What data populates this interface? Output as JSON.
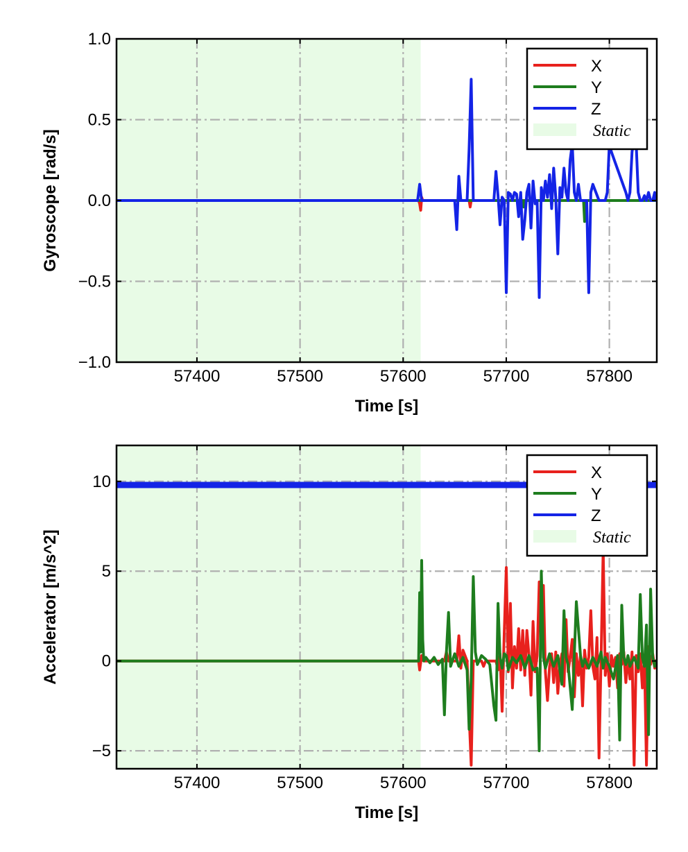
{
  "chart_data": [
    {
      "type": "line",
      "xlabel": "Time [s]",
      "ylabel": "Gyroscope [rad/s]",
      "xlim": [
        57322,
        57846
      ],
      "ylim": [
        -1.0,
        1.0
      ],
      "xticks": [
        57400,
        57500,
        57600,
        57700,
        57800
      ],
      "xtick_labels": [
        "57400",
        "57500",
        "57600",
        "57700",
        "57800"
      ],
      "yticks": [
        -1.0,
        -0.5,
        0.0,
        0.5,
        1.0
      ],
      "ytick_labels": [
        "−1.0",
        "−0.5",
        "0.0",
        "0.5",
        "1.0"
      ],
      "grid": true,
      "legend_position": "top-right",
      "static_region": {
        "name": "Static",
        "x": [
          57322,
          57617
        ],
        "color": "#e8fbe6"
      },
      "series": [
        {
          "name": "X",
          "color": "#e8211d",
          "x": [
            57322,
            57615,
            57616,
            57617,
            57618,
            57619,
            57664,
            57665,
            57666,
            57845
          ],
          "y": [
            0,
            0,
            -0.02,
            -0.06,
            0.02,
            0,
            0,
            -0.04,
            0,
            0
          ]
        },
        {
          "name": "Y",
          "color": "#1e7d1e",
          "x": [
            57322,
            57716,
            57717,
            57718,
            57775,
            57776,
            57777,
            57778,
            57845
          ],
          "y": [
            0,
            0,
            -0.04,
            0,
            0,
            -0.13,
            0,
            0,
            0
          ]
        },
        {
          "name": "Z",
          "color": "#1424e6",
          "x": [
            57322,
            57614,
            57616,
            57618,
            57650,
            57652,
            57654,
            57656,
            57662,
            57664,
            57666,
            57668,
            57670,
            57688,
            57690,
            57692,
            57694,
            57696,
            57698,
            57700,
            57702,
            57704,
            57706,
            57708,
            57710,
            57712,
            57714,
            57716,
            57718,
            57720,
            57722,
            57724,
            57726,
            57728,
            57730,
            57732,
            57734,
            57736,
            57738,
            57740,
            57742,
            57744,
            57746,
            57748,
            57750,
            57752,
            57754,
            57756,
            57758,
            57760,
            57762,
            57764,
            57766,
            57768,
            57770,
            57772,
            57774,
            57776,
            57778,
            57780,
            57782,
            57784,
            57790,
            57792,
            57794,
            57796,
            57798,
            57800,
            57802,
            57816,
            57818,
            57820,
            57822,
            57824,
            57826,
            57828,
            57830,
            57832,
            57834,
            57836,
            57838,
            57840,
            57842,
            57844,
            57845
          ],
          "y": [
            0,
            0,
            0.1,
            0,
            0,
            -0.18,
            0.15,
            0,
            0,
            0.32,
            0.75,
            0,
            0,
            0,
            0.18,
            0.03,
            -0.15,
            0.02,
            0,
            -0.57,
            0.05,
            0.04,
            0,
            0.05,
            0.04,
            -0.1,
            0.05,
            -0.24,
            -0.12,
            0.05,
            0.1,
            -0.17,
            0.12,
            -0.02,
            0,
            -0.6,
            0.08,
            0,
            0.12,
            0.02,
            0.16,
            -0.05,
            0.2,
            0.02,
            -0.33,
            0.08,
            0.02,
            0.2,
            0.05,
            0,
            0.25,
            0.35,
            0.05,
            0,
            0.1,
            0,
            0,
            0,
            0,
            -0.57,
            0.05,
            0.1,
            0,
            0,
            0,
            0,
            0.05,
            0.35,
            0.3,
            0.05,
            0,
            0.05,
            0.3,
            0.4,
            0.35,
            0.05,
            0,
            0,
            0.03,
            0,
            0.05,
            0,
            0,
            0.05,
            0
          ]
        }
      ]
    },
    {
      "type": "line",
      "xlabel": "Time [s]",
      "ylabel": "Accelerator [m/s^2]",
      "xlim": [
        57322,
        57846
      ],
      "ylim": [
        -6.0,
        12.0
      ],
      "xticks": [
        57400,
        57500,
        57600,
        57700,
        57800
      ],
      "xtick_labels": [
        "57400",
        "57500",
        "57600",
        "57700",
        "57800"
      ],
      "yticks": [
        -5,
        0,
        5,
        10
      ],
      "ytick_labels": [
        "−5",
        "0",
        "5",
        "10"
      ],
      "grid": true,
      "legend_position": "top-right",
      "static_region": {
        "name": "Static",
        "x": [
          57322,
          57617
        ],
        "color": "#e8fbe6"
      },
      "series": [
        {
          "name": "X",
          "color": "#e8211d",
          "x": [
            57322,
            57615,
            57616,
            57618,
            57620,
            57640,
            57642,
            57644,
            57652,
            57654,
            57656,
            57658,
            57662,
            57664,
            57666,
            57668,
            57676,
            57678,
            57680,
            57690,
            57692,
            57694,
            57696,
            57698,
            57700,
            57702,
            57704,
            57706,
            57708,
            57710,
            57712,
            57714,
            57716,
            57718,
            57720,
            57722,
            57724,
            57726,
            57728,
            57730,
            57732,
            57734,
            57736,
            57738,
            57740,
            57742,
            57744,
            57746,
            57748,
            57750,
            57752,
            57754,
            57756,
            57758,
            57760,
            57762,
            57764,
            57766,
            57768,
            57770,
            57772,
            57774,
            57776,
            57778,
            57780,
            57782,
            57784,
            57786,
            57788,
            57790,
            57792,
            57794,
            57796,
            57798,
            57800,
            57802,
            57804,
            57806,
            57808,
            57810,
            57812,
            57814,
            57816,
            57818,
            57820,
            57822,
            57824,
            57826,
            57828,
            57830,
            57832,
            57834,
            57836,
            57838,
            57840,
            57842,
            57844,
            57845
          ],
          "y": [
            0,
            0,
            -0.5,
            0.3,
            0,
            0,
            0.5,
            0,
            0,
            1.4,
            -0.4,
            0.6,
            0,
            -3,
            -5.8,
            0,
            0,
            -0.3,
            0,
            0,
            -0.5,
            0.4,
            -2.8,
            1.5,
            5.2,
            -0.6,
            3.2,
            -1.5,
            0.8,
            -0.4,
            1.8,
            -0.5,
            1.7,
            -0.8,
            1.7,
            0.3,
            -1.9,
            2.2,
            -0.6,
            0.3,
            4.4,
            0.8,
            4.2,
            -0.6,
            -2.2,
            -0.3,
            0.4,
            -1.2,
            0.5,
            -1.8,
            -0.2,
            0.4,
            -1.4,
            2.3,
            -0.6,
            0.2,
            1.2,
            -2.0,
            0.4,
            -0.8,
            0.3,
            -2.5,
            0.6,
            -0.4,
            0.2,
            2.8,
            -0.3,
            -1.0,
            1.3,
            -5.4,
            0.2,
            6.2,
            -0.8,
            0.4,
            -1.4,
            0.3,
            -0.3,
            0.2,
            -1.5,
            0.4,
            -0.2,
            0.5,
            -1.2,
            0.2,
            -1.0,
            0.5,
            -5.8,
            0.3,
            -0.6,
            0.4,
            -1.5,
            0.2,
            -5.8,
            0.8,
            -0.2,
            0.4,
            -0.4,
            0
          ]
        },
        {
          "name": "Y",
          "color": "#1e7d1e",
          "x": [
            57322,
            57615,
            57616,
            57617,
            57618,
            57619,
            57620,
            57622,
            57626,
            57630,
            57634,
            57638,
            57640,
            57642,
            57644,
            57646,
            57650,
            57654,
            57658,
            57662,
            57664,
            57666,
            57668,
            57670,
            57672,
            57676,
            57680,
            57684,
            57688,
            57690,
            57692,
            57694,
            57696,
            57698,
            57700,
            57702,
            57706,
            57710,
            57714,
            57718,
            57722,
            57726,
            57730,
            57732,
            57734,
            57736,
            57738,
            57742,
            57746,
            57750,
            57754,
            57756,
            57758,
            57760,
            57764,
            57768,
            57772,
            57774,
            57776,
            57780,
            57784,
            57788,
            57792,
            57794,
            57796,
            57800,
            57804,
            57808,
            57810,
            57812,
            57814,
            57816,
            57818,
            57820,
            57824,
            57828,
            57830,
            57832,
            57834,
            57836,
            57838,
            57840,
            57842,
            57844,
            57845
          ],
          "y": [
            0,
            0,
            3.8,
            0.5,
            5.6,
            1.2,
            0,
            0.2,
            -0.1,
            0.2,
            -0.2,
            0.1,
            -3,
            0.5,
            2.7,
            -0.3,
            0.4,
            -0.3,
            0.2,
            -0.5,
            -3.8,
            -1.0,
            4.7,
            0.5,
            -0.2,
            0.3,
            0.1,
            -0.2,
            -2.5,
            -3.3,
            3.2,
            0.2,
            -0.4,
            0.4,
            0.3,
            -0.5,
            0.2,
            -0.1,
            0.3,
            -0.4,
            0.3,
            -0.5,
            -0.4,
            -5.0,
            5.0,
            0.2,
            -0.4,
            0.4,
            -0.3,
            0.3,
            -1.3,
            2.8,
            0.2,
            -0.2,
            -2.7,
            3.3,
            0.3,
            -0.3,
            0.1,
            -0.4,
            0.2,
            -0.3,
            0.5,
            -0.4,
            0.2,
            -0.3,
            -1.0,
            0.3,
            -4.4,
            3.1,
            0.2,
            -0.2,
            0.3,
            -0.3,
            0.2,
            -0.4,
            3.7,
            0.2,
            -0.3,
            2.0,
            -4.1,
            4.0,
            0.2,
            -0.3,
            0
          ]
        },
        {
          "name": "Z",
          "color": "#1424e6",
          "x": [
            57322,
            57845
          ],
          "y": [
            9.8,
            9.8
          ]
        }
      ]
    }
  ]
}
